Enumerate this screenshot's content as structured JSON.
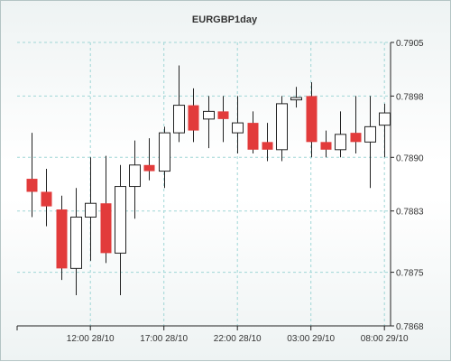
{
  "chart_data": {
    "type": "candlestick",
    "title": "EURGBP1day",
    "y_ticks": [
      "0.7905",
      "0.7898",
      "0.7890",
      "0.7883",
      "0.7875",
      "0.7868"
    ],
    "ylim": [
      0.7868,
      0.7905
    ],
    "x_ticks": [
      "12:00 28/10",
      "17:00 28/10",
      "22:00 28/10",
      "03:00 29/10",
      "08:00 29/10"
    ],
    "grid": true,
    "colors": {
      "up": "#ffffff",
      "down": "#e23b3b",
      "outline": "#222222",
      "grid": "#9fd6d6",
      "axis": "#222222"
    },
    "candles": [
      {
        "open": 0.78872,
        "high": 0.78932,
        "low": 0.78822,
        "close": 0.78855
      },
      {
        "open": 0.78855,
        "high": 0.78885,
        "low": 0.7881,
        "close": 0.78836
      },
      {
        "open": 0.78832,
        "high": 0.7885,
        "low": 0.7874,
        "close": 0.78755
      },
      {
        "open": 0.78755,
        "high": 0.7886,
        "low": 0.7872,
        "close": 0.78822
      },
      {
        "open": 0.78822,
        "high": 0.789,
        "low": 0.78765,
        "close": 0.7884
      },
      {
        "open": 0.7884,
        "high": 0.78902,
        "low": 0.78762,
        "close": 0.78775
      },
      {
        "open": 0.78775,
        "high": 0.7889,
        "low": 0.7872,
        "close": 0.78862
      },
      {
        "open": 0.78862,
        "high": 0.78922,
        "low": 0.7882,
        "close": 0.7889
      },
      {
        "open": 0.7889,
        "high": 0.78925,
        "low": 0.7887,
        "close": 0.78882
      },
      {
        "open": 0.78882,
        "high": 0.7894,
        "low": 0.7886,
        "close": 0.78932
      },
      {
        "open": 0.78932,
        "high": 0.7902,
        "low": 0.7892,
        "close": 0.78968
      },
      {
        "open": 0.78968,
        "high": 0.7899,
        "low": 0.7892,
        "close": 0.78935
      },
      {
        "open": 0.7895,
        "high": 0.7898,
        "low": 0.78912,
        "close": 0.7896
      },
      {
        "open": 0.7896,
        "high": 0.7898,
        "low": 0.7892,
        "close": 0.7895
      },
      {
        "open": 0.78932,
        "high": 0.7898,
        "low": 0.78905,
        "close": 0.78945
      },
      {
        "open": 0.78945,
        "high": 0.7896,
        "low": 0.78905,
        "close": 0.7891
      },
      {
        "open": 0.7892,
        "high": 0.78945,
        "low": 0.78895,
        "close": 0.7891
      },
      {
        "open": 0.7891,
        "high": 0.7898,
        "low": 0.78895,
        "close": 0.7897
      },
      {
        "open": 0.78975,
        "high": 0.78992,
        "low": 0.78965,
        "close": 0.78978
      },
      {
        "open": 0.7898,
        "high": 0.78998,
        "low": 0.789,
        "close": 0.7892
      },
      {
        "open": 0.7892,
        "high": 0.78935,
        "low": 0.789,
        "close": 0.7891
      },
      {
        "open": 0.7891,
        "high": 0.7896,
        "low": 0.789,
        "close": 0.7893
      },
      {
        "open": 0.78932,
        "high": 0.7898,
        "low": 0.78905,
        "close": 0.7892
      },
      {
        "open": 0.7892,
        "high": 0.7898,
        "low": 0.7886,
        "close": 0.7894
      },
      {
        "open": 0.78942,
        "high": 0.7897,
        "low": 0.789,
        "close": 0.78958
      }
    ]
  }
}
